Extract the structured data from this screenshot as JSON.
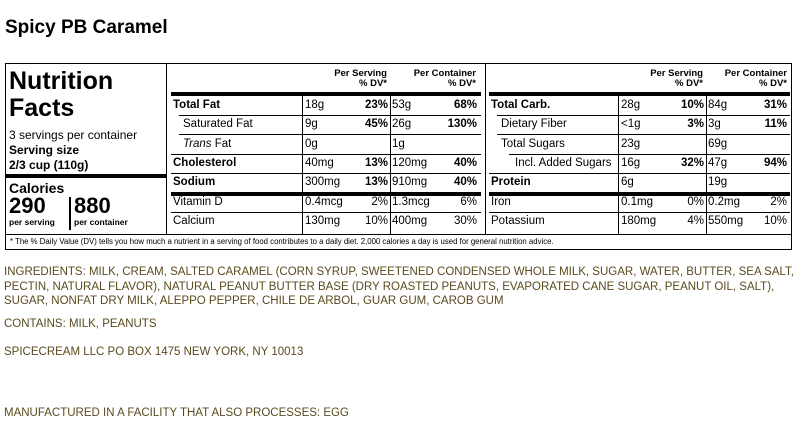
{
  "product_name": "Spicy PB Caramel",
  "nutrition": {
    "title_line1": "Nutrition",
    "title_line2": "Facts",
    "servings": "3 servings per container",
    "serving_size_label": "Serving size",
    "serving_size_value": "2/3 cup (110g)",
    "calories_label": "Calories",
    "calories_per_serving": "290",
    "calories_per_container": "880",
    "per_serving_label": "per serving",
    "per_container_label": "per container",
    "col_per_serving": "Per Serving",
    "col_per_container": "Per Container",
    "col_dv": "% DV*",
    "left_rows": [
      {
        "name": "Total Fat",
        "s_amt": "18g",
        "s_dv": "23%",
        "c_amt": "53g",
        "c_dv": "68%"
      },
      {
        "name": "Saturated Fat",
        "s_amt": "9g",
        "s_dv": "45%",
        "c_amt": "26g",
        "c_dv": "130%"
      },
      {
        "name": "Trans",
        "name_suffix": " Fat",
        "s_amt": "0g",
        "s_dv": "",
        "c_amt": "1g",
        "c_dv": ""
      },
      {
        "name": "Cholesterol",
        "s_amt": "40mg",
        "s_dv": "13%",
        "c_amt": "120mg",
        "c_dv": "40%"
      },
      {
        "name": "Sodium",
        "s_amt": "300mg",
        "s_dv": "13%",
        "c_amt": "910mg",
        "c_dv": "40%"
      },
      {
        "name": "Vitamin D",
        "s_amt": "0.4mcg",
        "s_dv": "2%",
        "c_amt": "1.3mcg",
        "c_dv": "6%"
      },
      {
        "name": "Calcium",
        "s_amt": "130mg",
        "s_dv": "10%",
        "c_amt": "400mg",
        "c_dv": "30%"
      }
    ],
    "right_rows": [
      {
        "name": "Total Carb.",
        "s_amt": "28g",
        "s_dv": "10%",
        "c_amt": "84g",
        "c_dv": "31%"
      },
      {
        "name": "Dietary Fiber",
        "s_amt": "<1g",
        "s_dv": "3%",
        "c_amt": "3g",
        "c_dv": "11%"
      },
      {
        "name": "Total Sugars",
        "s_amt": "23g",
        "s_dv": "",
        "c_amt": "69g",
        "c_dv": ""
      },
      {
        "name": "Incl. Added Sugars",
        "s_amt": "16g",
        "s_dv": "32%",
        "c_amt": "47g",
        "c_dv": "94%"
      },
      {
        "name": "Protein",
        "s_amt": "6g",
        "s_dv": "",
        "c_amt": "19g",
        "c_dv": ""
      },
      {
        "name": "Iron",
        "s_amt": "0.1mg",
        "s_dv": "0%",
        "c_amt": "0.2mg",
        "c_dv": "2%"
      },
      {
        "name": "Potassium",
        "s_amt": "180mg",
        "s_dv": "4%",
        "c_amt": "550mg",
        "c_dv": "10%"
      }
    ],
    "footnote": "* The % Daily Value (DV) tells you how much a nutrient in a serving of food contributes to a daily diet. 2,000 calories a day is used for general nutrition advice."
  },
  "ingredients": "INGREDIENTS: MILK, CREAM, SALTED CARAMEL (CORN SYRUP, SWEETENED CONDENSED WHOLE MILK, SUGAR, WATER, BUTTER, SEA SALT, PECTIN, NATURAL FLAVOR), NATURAL PEANUT BUTTER BASE (DRY ROASTED PEANUTS, EVAPORATED CANE SUGAR, PEANUT OIL, SALT), SUGAR, NONFAT DRY MILK, ALEPPO PEPPER, CHILE DE ARBOL, GUAR GUM, CAROB GUM",
  "contains": "CONTAINS: MILK, PEANUTS",
  "address": "SPICECREAM LLC PO BOX 1475 NEW YORK, NY 10013",
  "facility": "MANUFACTURED IN A FACILITY THAT ALSO PROCESSES: EGG"
}
